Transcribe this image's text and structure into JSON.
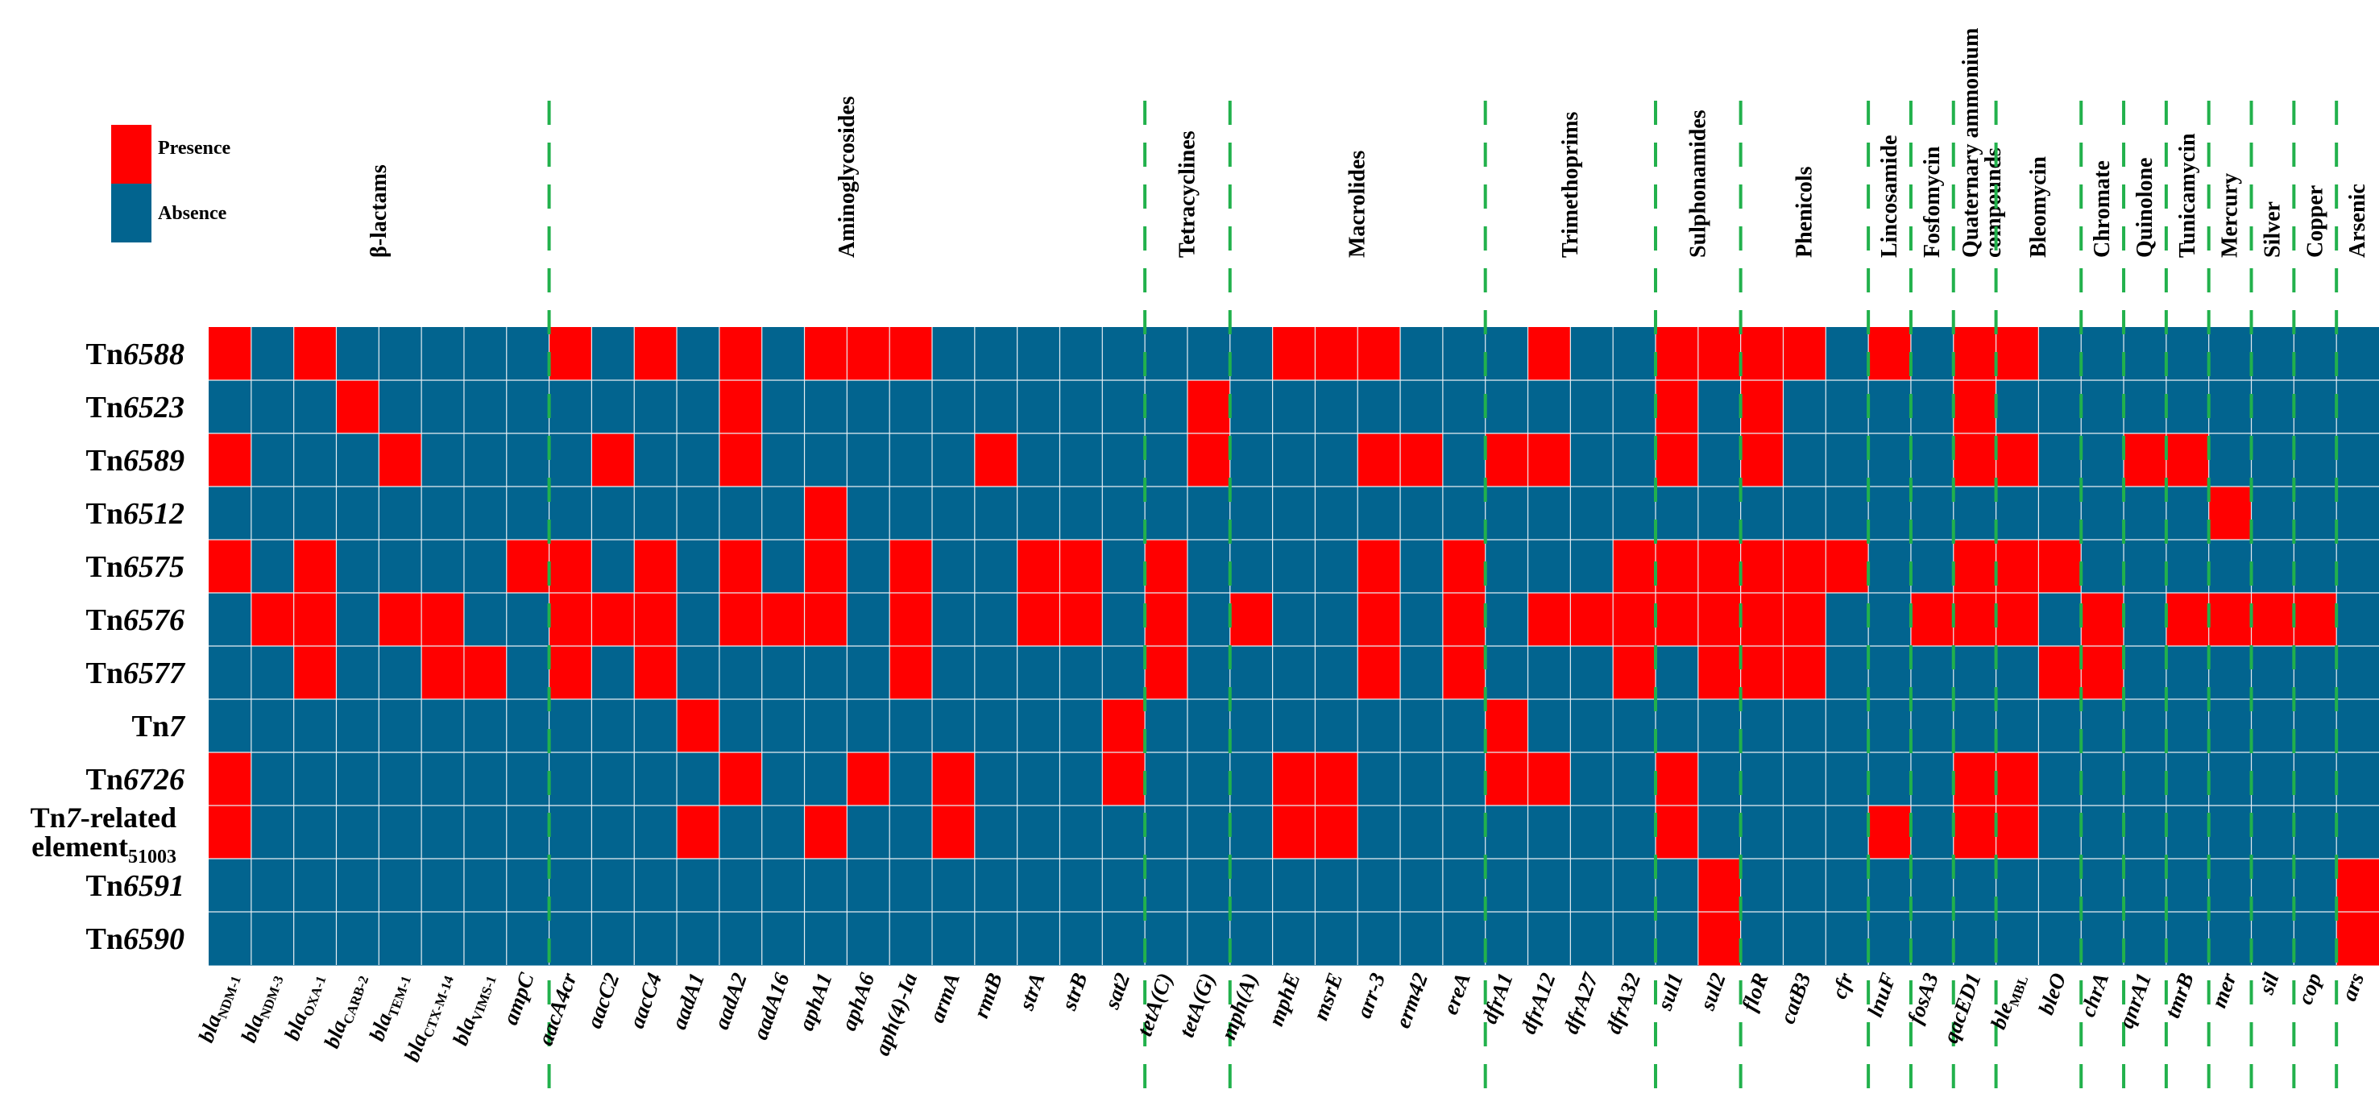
{
  "chart_data": {
    "type": "heatmap",
    "title": "",
    "legend": {
      "placement": "top-left",
      "entries": [
        {
          "label": "Presence",
          "value": 1,
          "color": "#FF0000"
        },
        {
          "label": "Absence",
          "value": 0,
          "color": "#02648F"
        }
      ]
    },
    "rows": [
      {
        "name": "Tn6588",
        "prefix": "Tn",
        "suffix": "6588"
      },
      {
        "name": "Tn6523",
        "prefix": "Tn",
        "suffix": "6523"
      },
      {
        "name": "Tn6589",
        "prefix": "Tn",
        "suffix": "6589"
      },
      {
        "name": "Tn6512",
        "prefix": "Tn",
        "suffix": "6512"
      },
      {
        "name": "Tn6575",
        "prefix": "Tn",
        "suffix": "6575"
      },
      {
        "name": "Tn6576",
        "prefix": "Tn",
        "suffix": "6576"
      },
      {
        "name": "Tn6577",
        "prefix": "Tn",
        "suffix": "6577"
      },
      {
        "name": "Tn7",
        "prefix": "Tn",
        "suffix": "7"
      },
      {
        "name": "Tn6726",
        "prefix": "Tn",
        "suffix": "6726"
      },
      {
        "name": "Tn7-related element51003",
        "prefix": "Tn",
        "suffix": "7",
        "rest": "-related",
        "line2": "element",
        "sub": "51003"
      },
      {
        "name": "Tn6591",
        "prefix": "Tn",
        "suffix": "6591"
      },
      {
        "name": "Tn6590",
        "prefix": "Tn",
        "suffix": "6590"
      }
    ],
    "genes": [
      {
        "base": "bla",
        "sub": "NDM-1"
      },
      {
        "base": "bla",
        "sub": "NDM-3"
      },
      {
        "base": "bla",
        "sub": "OXA-1"
      },
      {
        "base": "bla",
        "sub": "CARB-2"
      },
      {
        "base": "bla",
        "sub": "TEM-1"
      },
      {
        "base": "bla",
        "sub": "CTX-M-14"
      },
      {
        "base": "bla",
        "sub": "VIMS-1"
      },
      {
        "base": "ampC"
      },
      {
        "base": "aacA4cr"
      },
      {
        "base": "aacC2"
      },
      {
        "base": "aacC4"
      },
      {
        "base": "aadA1"
      },
      {
        "base": "aadA2"
      },
      {
        "base": "aadA16"
      },
      {
        "base": "aphA1"
      },
      {
        "base": "aphA6"
      },
      {
        "base": "aph(4)-Ia"
      },
      {
        "base": "armA"
      },
      {
        "base": "rmtB"
      },
      {
        "base": "strA"
      },
      {
        "base": "strB"
      },
      {
        "base": "sat2"
      },
      {
        "base": "tetA(C)"
      },
      {
        "base": "tetA(G)"
      },
      {
        "base": "mph(A)"
      },
      {
        "base": "mphE"
      },
      {
        "base": "msrE"
      },
      {
        "base": "arr-3"
      },
      {
        "base": "erm42"
      },
      {
        "base": "ereA"
      },
      {
        "base": "dfrA1"
      },
      {
        "base": "dfrA12"
      },
      {
        "base": "dfrA27"
      },
      {
        "base": "dfrA32"
      },
      {
        "base": "sul1"
      },
      {
        "base": "sul2"
      },
      {
        "base": "floR"
      },
      {
        "base": "catB3"
      },
      {
        "base": "cfr"
      },
      {
        "base": "lnuF"
      },
      {
        "base": "fosA3"
      },
      {
        "base": "qacED1"
      },
      {
        "base": "ble",
        "sub": "MBL"
      },
      {
        "base": "bleO"
      },
      {
        "base": "chrA"
      },
      {
        "base": "qnrA1"
      },
      {
        "base": "tmrB"
      },
      {
        "base": "mer"
      },
      {
        "base": "sil"
      },
      {
        "base": "cop"
      },
      {
        "base": "ars"
      }
    ],
    "categories": [
      {
        "label": "β-lactams",
        "start": 0,
        "end": 7
      },
      {
        "label": "Aminoglycosides",
        "start": 8,
        "end": 21
      },
      {
        "label": "Tetracyclines",
        "start": 22,
        "end": 23
      },
      {
        "label": "Macrolides",
        "start": 24,
        "end": 29
      },
      {
        "label": "Trimethoprims",
        "start": 30,
        "end": 33
      },
      {
        "label": "Sulphonamides",
        "start": 34,
        "end": 35
      },
      {
        "label": "Phenicols",
        "start": 36,
        "end": 38
      },
      {
        "label": "Lincosamide",
        "start": 39,
        "end": 39
      },
      {
        "label": "Fosfomycin",
        "start": 40,
        "end": 40
      },
      {
        "label": "Quaternary ammonium compounds",
        "start": 41,
        "end": 41
      },
      {
        "label": "Bleomycin",
        "start": 42,
        "end": 43
      },
      {
        "label": "Chromate",
        "start": 44,
        "end": 44
      },
      {
        "label": "Quinolone",
        "start": 45,
        "end": 45
      },
      {
        "label": "Tunicamycin",
        "start": 46,
        "end": 46
      },
      {
        "label": "Mercury",
        "start": 47,
        "end": 47
      },
      {
        "label": "Silver",
        "start": 48,
        "end": 48
      },
      {
        "label": "Copper",
        "start": 49,
        "end": 49
      },
      {
        "label": "Arsenic",
        "start": 50,
        "end": 50
      }
    ],
    "matrix": [
      [
        1,
        0,
        1,
        0,
        0,
        0,
        0,
        0,
        1,
        0,
        1,
        0,
        1,
        0,
        1,
        1,
        1,
        0,
        0,
        0,
        0,
        0,
        0,
        0,
        0,
        1,
        1,
        1,
        0,
        0,
        0,
        1,
        0,
        0,
        1,
        1,
        1,
        1,
        0,
        1,
        0,
        1,
        1,
        0,
        0,
        0,
        0,
        0,
        0,
        0,
        0
      ],
      [
        0,
        0,
        0,
        1,
        0,
        0,
        0,
        0,
        0,
        0,
        0,
        0,
        1,
        0,
        0,
        0,
        0,
        0,
        0,
        0,
        0,
        0,
        0,
        1,
        0,
        0,
        0,
        0,
        0,
        0,
        0,
        0,
        0,
        0,
        1,
        0,
        1,
        0,
        0,
        0,
        0,
        1,
        0,
        0,
        0,
        0,
        0,
        0,
        0,
        0,
        0
      ],
      [
        1,
        0,
        0,
        0,
        1,
        0,
        0,
        0,
        0,
        1,
        0,
        0,
        1,
        0,
        0,
        0,
        0,
        0,
        1,
        0,
        0,
        0,
        0,
        1,
        0,
        0,
        0,
        1,
        1,
        0,
        1,
        1,
        0,
        0,
        1,
        0,
        1,
        0,
        0,
        0,
        0,
        1,
        1,
        0,
        0,
        1,
        1,
        0,
        0,
        0,
        0
      ],
      [
        0,
        0,
        0,
        0,
        0,
        0,
        0,
        0,
        0,
        0,
        0,
        0,
        0,
        0,
        1,
        0,
        0,
        0,
        0,
        0,
        0,
        0,
        0,
        0,
        0,
        0,
        0,
        0,
        0,
        0,
        0,
        0,
        0,
        0,
        0,
        0,
        0,
        0,
        0,
        0,
        0,
        0,
        0,
        0,
        0,
        0,
        0,
        1,
        0,
        0,
        0
      ],
      [
        1,
        0,
        1,
        0,
        0,
        0,
        0,
        1,
        1,
        0,
        1,
        0,
        1,
        0,
        1,
        0,
        1,
        0,
        0,
        1,
        1,
        0,
        1,
        0,
        0,
        0,
        0,
        1,
        0,
        1,
        0,
        0,
        0,
        1,
        1,
        1,
        1,
        1,
        1,
        0,
        0,
        1,
        1,
        1,
        0,
        0,
        0,
        0,
        0,
        0,
        0
      ],
      [
        0,
        1,
        1,
        0,
        1,
        1,
        0,
        0,
        1,
        1,
        1,
        0,
        1,
        1,
        1,
        0,
        1,
        0,
        0,
        1,
        1,
        0,
        1,
        0,
        1,
        0,
        0,
        1,
        0,
        1,
        0,
        1,
        1,
        1,
        1,
        1,
        1,
        1,
        0,
        0,
        1,
        1,
        1,
        0,
        1,
        0,
        1,
        1,
        1,
        1,
        0
      ],
      [
        0,
        0,
        1,
        0,
        0,
        1,
        1,
        0,
        1,
        0,
        1,
        0,
        0,
        0,
        0,
        0,
        1,
        0,
        0,
        0,
        0,
        0,
        1,
        0,
        0,
        0,
        0,
        1,
        0,
        1,
        0,
        0,
        0,
        1,
        0,
        1,
        1,
        1,
        0,
        0,
        0,
        0,
        0,
        1,
        1,
        0,
        0,
        0,
        0,
        0,
        0
      ],
      [
        0,
        0,
        0,
        0,
        0,
        0,
        0,
        0,
        0,
        0,
        0,
        1,
        0,
        0,
        0,
        0,
        0,
        0,
        0,
        0,
        0,
        1,
        0,
        0,
        0,
        0,
        0,
        0,
        0,
        0,
        1,
        0,
        0,
        0,
        0,
        0,
        0,
        0,
        0,
        0,
        0,
        0,
        0,
        0,
        0,
        0,
        0,
        0,
        0,
        0,
        0
      ],
      [
        1,
        0,
        0,
        0,
        0,
        0,
        0,
        0,
        0,
        0,
        0,
        0,
        1,
        0,
        0,
        1,
        0,
        1,
        0,
        0,
        0,
        1,
        0,
        0,
        0,
        1,
        1,
        0,
        0,
        0,
        1,
        1,
        0,
        0,
        1,
        0,
        0,
        0,
        0,
        0,
        0,
        1,
        1,
        0,
        0,
        0,
        0,
        0,
        0,
        0,
        0
      ],
      [
        1,
        0,
        0,
        0,
        0,
        0,
        0,
        0,
        0,
        0,
        0,
        1,
        0,
        0,
        1,
        0,
        0,
        1,
        0,
        0,
        0,
        0,
        0,
        0,
        0,
        1,
        1,
        0,
        0,
        0,
        0,
        0,
        0,
        0,
        1,
        0,
        0,
        0,
        0,
        1,
        0,
        1,
        1,
        0,
        0,
        0,
        0,
        0,
        0,
        0,
        0
      ],
      [
        0,
        0,
        0,
        0,
        0,
        0,
        0,
        0,
        0,
        0,
        0,
        0,
        0,
        0,
        0,
        0,
        0,
        0,
        0,
        0,
        0,
        0,
        0,
        0,
        0,
        0,
        0,
        0,
        0,
        0,
        0,
        0,
        0,
        0,
        0,
        1,
        0,
        0,
        0,
        0,
        0,
        0,
        0,
        0,
        0,
        0,
        0,
        0,
        0,
        0,
        1
      ],
      [
        0,
        0,
        0,
        0,
        0,
        0,
        0,
        0,
        0,
        0,
        0,
        0,
        0,
        0,
        0,
        0,
        0,
        0,
        0,
        0,
        0,
        0,
        0,
        0,
        0,
        0,
        0,
        0,
        0,
        0,
        0,
        0,
        0,
        0,
        0,
        1,
        0,
        0,
        0,
        0,
        0,
        0,
        0,
        0,
        0,
        0,
        0,
        0,
        0,
        0,
        1
      ]
    ],
    "separator_color": "#22B14C"
  }
}
